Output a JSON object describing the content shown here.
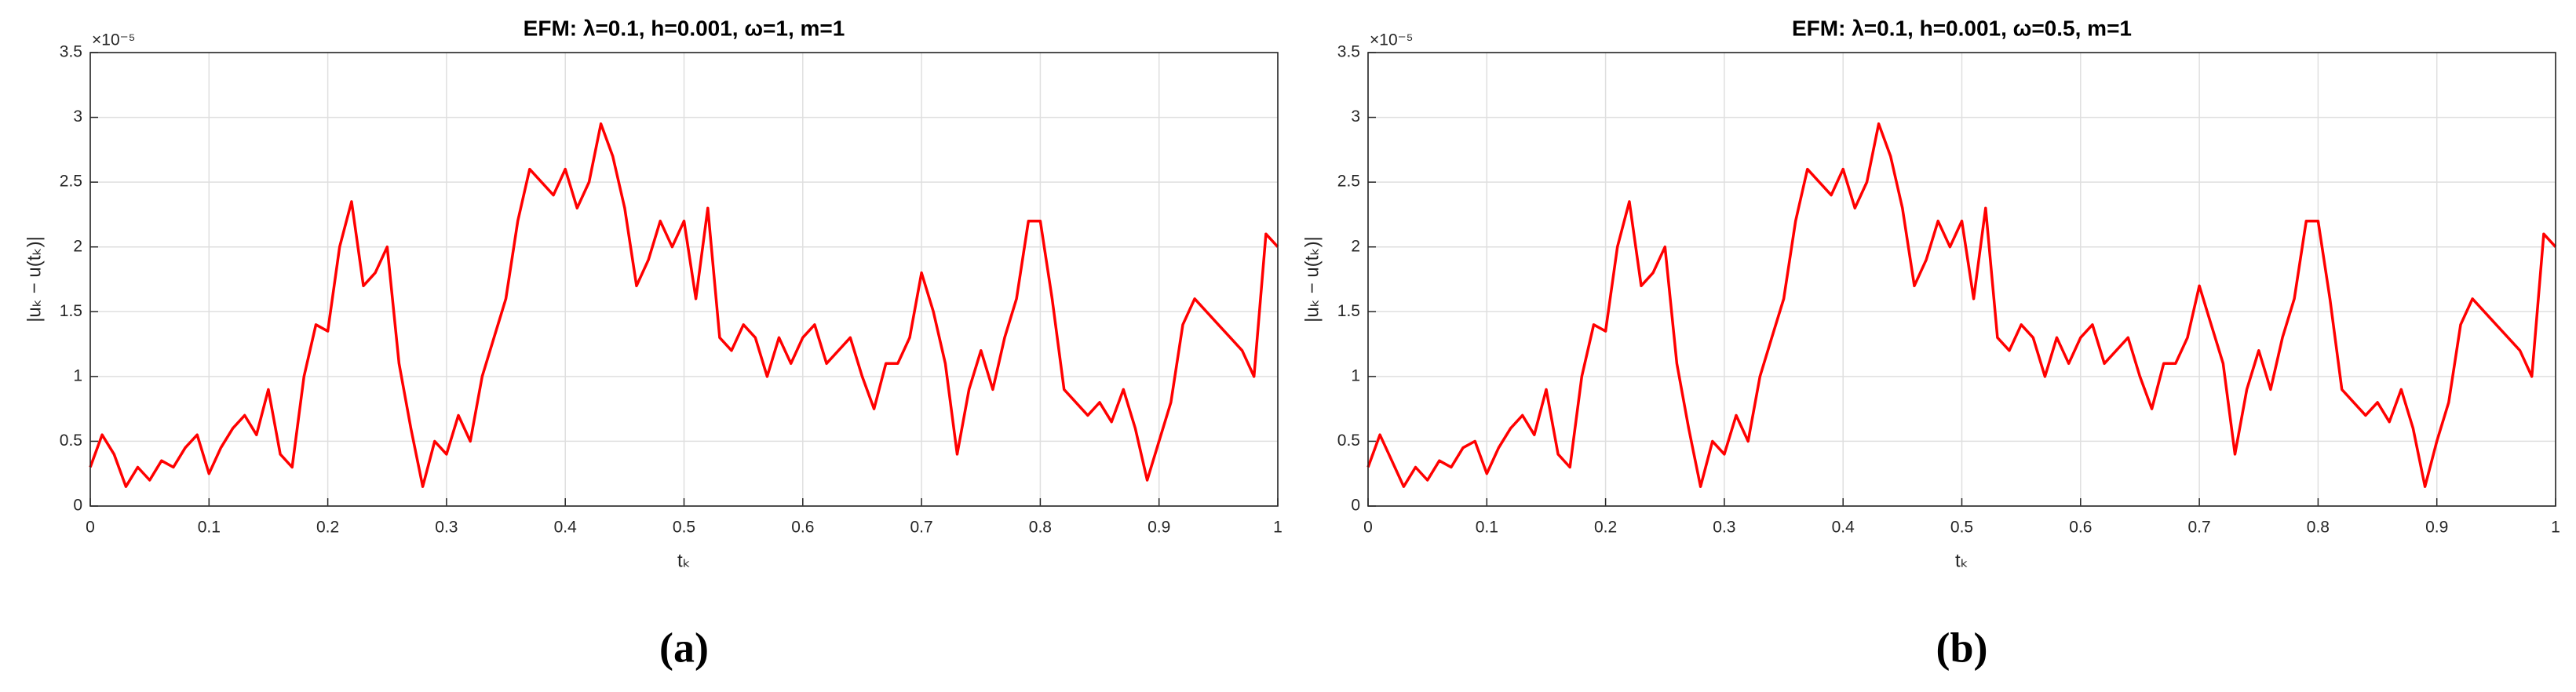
{
  "chart_data": [
    {
      "type": "line",
      "title": "EFM: λ=0.1, h=0.001, ω=1, m=1",
      "xlabel": "tₖ",
      "ylabel": "|uₖ − u(tₖ)|",
      "y_multiplier": "×10⁻⁵",
      "caption": "(a)",
      "xlim": [
        0,
        1
      ],
      "ylim": [
        0,
        3.5
      ],
      "xticks": [
        0,
        0.1,
        0.2,
        0.3,
        0.4,
        0.5,
        0.6,
        0.7,
        0.8,
        0.9,
        1
      ],
      "yticks": [
        0,
        0.5,
        1,
        1.5,
        2,
        2.5,
        3,
        3.5
      ],
      "grid": true,
      "x": [
        0,
        0.01,
        0.02,
        0.03,
        0.04,
        0.05,
        0.06,
        0.07,
        0.08,
        0.09,
        0.1,
        0.11,
        0.12,
        0.13,
        0.14,
        0.15,
        0.16,
        0.17,
        0.18,
        0.19,
        0.2,
        0.21,
        0.22,
        0.23,
        0.24,
        0.25,
        0.26,
        0.27,
        0.28,
        0.29,
        0.3,
        0.31,
        0.32,
        0.33,
        0.34,
        0.35,
        0.36,
        0.37,
        0.38,
        0.39,
        0.4,
        0.41,
        0.42,
        0.43,
        0.44,
        0.45,
        0.46,
        0.47,
        0.48,
        0.49,
        0.5,
        0.51,
        0.52,
        0.53,
        0.54,
        0.55,
        0.56,
        0.57,
        0.58,
        0.59,
        0.6,
        0.61,
        0.62,
        0.63,
        0.64,
        0.65,
        0.66,
        0.67,
        0.68,
        0.69,
        0.7,
        0.71,
        0.72,
        0.73,
        0.74,
        0.75,
        0.76,
        0.77,
        0.78,
        0.79,
        0.8,
        0.81,
        0.82,
        0.83,
        0.84,
        0.85,
        0.86,
        0.87,
        0.88,
        0.89,
        0.9,
        0.91,
        0.92,
        0.93,
        0.94,
        0.95,
        0.96,
        0.97,
        0.98,
        0.99,
        1
      ],
      "series": [
        {
          "color": "#ff0000",
          "values": [
            0.3,
            0.55,
            0.4,
            0.15,
            0.3,
            0.2,
            0.35,
            0.3,
            0.45,
            0.55,
            0.25,
            0.45,
            0.6,
            0.7,
            0.55,
            0.9,
            0.4,
            0.3,
            1.0,
            1.4,
            1.35,
            2.0,
            2.35,
            1.7,
            1.8,
            2.0,
            1.1,
            0.6,
            0.15,
            0.5,
            0.4,
            0.7,
            0.5,
            1.0,
            1.3,
            1.6,
            2.2,
            2.6,
            2.5,
            2.4,
            2.6,
            2.3,
            2.5,
            2.95,
            2.7,
            2.3,
            1.7,
            1.9,
            2.2,
            2.0,
            2.2,
            1.6,
            2.3,
            1.3,
            1.2,
            1.4,
            1.3,
            1.0,
            1.3,
            1.1,
            1.3,
            1.4,
            1.1,
            1.2,
            1.3,
            1.0,
            0.75,
            1.1,
            1.1,
            1.3,
            1.8,
            1.5,
            1.1,
            0.4,
            0.9,
            1.2,
            0.9,
            1.3,
            1.6,
            2.2,
            2.2,
            1.6,
            0.9,
            0.8,
            0.7,
            0.8,
            0.65,
            0.9,
            0.6,
            0.2,
            0.5,
            0.8,
            1.4,
            1.6,
            1.5,
            1.4,
            1.3,
            1.2,
            1.0,
            2.1,
            2.0
          ]
        }
      ]
    },
    {
      "type": "line",
      "title": "EFM: λ=0.1, h=0.001, ω=0.5, m=1",
      "xlabel": "tₖ",
      "ylabel": "|uₖ − u(tₖ)|",
      "y_multiplier": "×10⁻⁵",
      "caption": "(b)",
      "xlim": [
        0,
        1
      ],
      "ylim": [
        0,
        3.5
      ],
      "xticks": [
        0,
        0.1,
        0.2,
        0.3,
        0.4,
        0.5,
        0.6,
        0.7,
        0.8,
        0.9,
        1
      ],
      "yticks": [
        0,
        0.5,
        1,
        1.5,
        2,
        2.5,
        3,
        3.5
      ],
      "grid": true,
      "x": [
        0,
        0.01,
        0.02,
        0.03,
        0.04,
        0.05,
        0.06,
        0.07,
        0.08,
        0.09,
        0.1,
        0.11,
        0.12,
        0.13,
        0.14,
        0.15,
        0.16,
        0.17,
        0.18,
        0.19,
        0.2,
        0.21,
        0.22,
        0.23,
        0.24,
        0.25,
        0.26,
        0.27,
        0.28,
        0.29,
        0.3,
        0.31,
        0.32,
        0.33,
        0.34,
        0.35,
        0.36,
        0.37,
        0.38,
        0.39,
        0.4,
        0.41,
        0.42,
        0.43,
        0.44,
        0.45,
        0.46,
        0.47,
        0.48,
        0.49,
        0.5,
        0.51,
        0.52,
        0.53,
        0.54,
        0.55,
        0.56,
        0.57,
        0.58,
        0.59,
        0.6,
        0.61,
        0.62,
        0.63,
        0.64,
        0.65,
        0.66,
        0.67,
        0.68,
        0.69,
        0.7,
        0.71,
        0.72,
        0.73,
        0.74,
        0.75,
        0.76,
        0.77,
        0.78,
        0.79,
        0.8,
        0.81,
        0.82,
        0.83,
        0.84,
        0.85,
        0.86,
        0.87,
        0.88,
        0.89,
        0.9,
        0.91,
        0.92,
        0.93,
        0.94,
        0.95,
        0.96,
        0.97,
        0.98,
        0.99,
        1
      ],
      "series": [
        {
          "color": "#ff0000",
          "values": [
            0.3,
            0.55,
            0.35,
            0.15,
            0.3,
            0.2,
            0.35,
            0.3,
            0.45,
            0.5,
            0.25,
            0.45,
            0.6,
            0.7,
            0.55,
            0.9,
            0.4,
            0.3,
            1.0,
            1.4,
            1.35,
            2.0,
            2.35,
            1.7,
            1.8,
            2.0,
            1.1,
            0.6,
            0.15,
            0.5,
            0.4,
            0.7,
            0.5,
            1.0,
            1.3,
            1.6,
            2.2,
            2.6,
            2.5,
            2.4,
            2.6,
            2.3,
            2.5,
            2.95,
            2.7,
            2.3,
            1.7,
            1.9,
            2.2,
            2.0,
            2.2,
            1.6,
            2.3,
            1.3,
            1.2,
            1.4,
            1.3,
            1.0,
            1.3,
            1.1,
            1.3,
            1.4,
            1.1,
            1.2,
            1.3,
            1.0,
            0.75,
            1.1,
            1.1,
            1.3,
            1.7,
            1.4,
            1.1,
            0.4,
            0.9,
            1.2,
            0.9,
            1.3,
            1.6,
            2.2,
            2.2,
            1.6,
            0.9,
            0.8,
            0.7,
            0.8,
            0.65,
            0.9,
            0.6,
            0.15,
            0.5,
            0.8,
            1.4,
            1.6,
            1.5,
            1.4,
            1.3,
            1.2,
            1.0,
            2.1,
            2.0
          ]
        }
      ]
    }
  ]
}
